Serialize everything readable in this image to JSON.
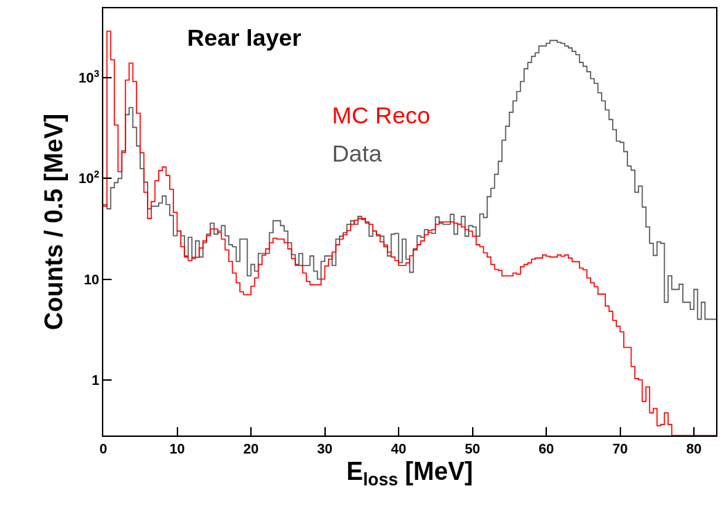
{
  "chart_data": {
    "type": "histogram",
    "title": "Rear layer",
    "xlabel": "E$_{loss}$ [MeV]",
    "ylabel": "Counts / 0.5 [MeV]",
    "bins": [
      0,
      0.5,
      1,
      1.5,
      2,
      2.5,
      3,
      3.5,
      4,
      4.5,
      5,
      5.5,
      6,
      6.5,
      7,
      7.5,
      8,
      8.5,
      9,
      9.5,
      10,
      10.5,
      11,
      11.5,
      12,
      12.5,
      13,
      13.5,
      14,
      14.5,
      15,
      15.5,
      16,
      16.5,
      17,
      17.5,
      18,
      18.5,
      19,
      19.5,
      20,
      20.5,
      21,
      21.5,
      22,
      22.5,
      23,
      23.5,
      24,
      24.5,
      25,
      25.5,
      26,
      26.5,
      27,
      27.5,
      28,
      28.5,
      29,
      29.5,
      30,
      30.5,
      31,
      31.5,
      32,
      32.5,
      33,
      33.5,
      34,
      34.5,
      35,
      35.5,
      36,
      36.5,
      37,
      37.5,
      38,
      38.5,
      39,
      39.5,
      40,
      40.5,
      41,
      41.5,
      42,
      42.5,
      43,
      43.5,
      44,
      44.5,
      45,
      45.5,
      46,
      46.5,
      47,
      47.5,
      48,
      48.5,
      49,
      49.5,
      50,
      50.5,
      51,
      51.5,
      52,
      52.5,
      53,
      53.5,
      54,
      54.5,
      55,
      55.5,
      56,
      56.5,
      57,
      57.5,
      58,
      58.5,
      59,
      59.5,
      60,
      60.5,
      61,
      61.5,
      62,
      62.5,
      63,
      63.5,
      64,
      64.5,
      65,
      65.5,
      66,
      66.5,
      67,
      67.5,
      68,
      68.5,
      69,
      69.5,
      70,
      70.5,
      71,
      71.5,
      72,
      72.5,
      73,
      73.5,
      74,
      74.5,
      75,
      75.5,
      76,
      76.5,
      77,
      77.5,
      78,
      78.5,
      79,
      79.5,
      80,
      80.5,
      81,
      81.5,
      82,
      82.5,
      83
    ],
    "series": [
      {
        "name": "Data",
        "color": "#555555",
        "values": [
          55,
          50,
          81,
          91,
          100,
          188,
          430,
          505,
          322,
          210,
          125,
          92,
          50,
          53,
          53,
          57,
          67,
          55,
          43,
          27,
          30,
          27,
          17,
          26,
          16,
          24,
          16.6,
          23,
          28,
          36,
          28,
          30,
          34,
          27,
          22,
          21,
          15,
          25,
          25,
          10.8,
          14,
          12,
          18,
          18,
          18,
          29,
          38,
          38,
          34,
          30,
          23,
          17.5,
          14,
          18,
          13.7,
          13.7,
          17,
          12,
          10,
          15,
          17,
          17,
          13.7,
          25,
          26.7,
          29,
          35,
          38,
          35,
          42,
          39,
          36,
          26.7,
          30,
          27,
          26.7,
          21.8,
          17,
          28,
          28.5,
          14.6,
          25,
          15.8,
          11.7,
          20,
          27,
          26,
          31,
          29,
          28.5,
          41.5,
          36,
          35,
          35,
          44,
          28,
          35,
          42,
          26.7,
          34,
          33,
          26.7,
          44.5,
          41,
          66,
          80,
          110,
          148,
          240,
          330,
          455,
          590,
          730,
          920,
          1230,
          1420,
          1630,
          1770,
          2070,
          2070,
          2200,
          2350,
          2350,
          2250,
          2200,
          2070,
          1980,
          1830,
          1700,
          1420,
          1300,
          1150,
          980,
          880,
          710,
          590,
          480,
          385,
          305,
          235,
          228,
          185,
          133,
          121,
          73,
          84,
          52,
          33,
          22.7,
          17.2,
          23.5,
          22.7,
          5.9,
          10.8,
          7.9,
          7.9,
          8.9,
          5.9,
          5.9,
          5.0,
          7.9,
          4.0,
          5.9,
          4.0,
          4.0,
          4.0
        ]
      },
      {
        "name": "MC Reco",
        "color": "#ff0000",
        "values": [
          53,
          2900,
          1510,
          340,
          117,
          180,
          950,
          1400,
          920,
          445,
          180,
          73,
          40,
          59,
          95,
          120,
          130,
          107,
          78,
          46,
          30,
          21,
          16.6,
          15.3,
          16.5,
          16.5,
          20.4,
          24,
          27,
          31.5,
          31.5,
          29,
          25,
          19.5,
          15,
          11.5,
          9.2,
          7.5,
          7,
          7,
          8.5,
          10.3,
          14,
          17.3,
          20,
          23,
          25.5,
          25,
          25,
          23,
          20,
          16,
          13.7,
          13.7,
          11.5,
          9.5,
          8.8,
          8.8,
          8.8,
          10,
          13.5,
          15.8,
          18.6,
          22,
          25,
          27.6,
          30.4,
          35,
          38.5,
          40,
          40,
          37,
          35,
          30,
          27.6,
          23.5,
          21,
          18.6,
          16.6,
          15.3,
          13.7,
          13.7,
          14.5,
          17.1,
          19.5,
          22,
          24,
          27.6,
          30.4,
          31,
          35,
          37,
          37,
          37,
          37,
          36,
          35,
          33,
          31,
          30,
          26.7,
          22,
          21,
          18.3,
          16.6,
          14,
          12.5,
          12.2,
          10.8,
          10.8,
          10.8,
          11.5,
          11.2,
          13.3,
          14,
          14.5,
          15.8,
          16.2,
          16.2,
          17.4,
          16.9,
          16.6,
          16.6,
          17.4,
          16.9,
          17.4,
          16.2,
          14.9,
          14.9,
          12.9,
          12.4,
          10.3,
          9.2,
          8.4,
          7.1,
          7.1,
          5.4,
          4.8,
          3.9,
          3.4,
          3.0,
          2.1,
          2.1,
          1.35,
          1.03,
          1.0,
          0.61,
          0.85,
          0.47,
          0.52,
          0.35,
          0.36,
          0.47,
          0.36,
          null,
          null,
          null,
          null,
          null,
          null,
          null,
          null,
          null,
          null,
          null,
          null
        ]
      }
    ],
    "xlim": [
      0,
      83
    ],
    "xticks": [
      0,
      10,
      20,
      30,
      40,
      50,
      60,
      70,
      80
    ],
    "ylim": [
      0.28,
      4900
    ],
    "yticks": [
      1,
      10,
      {
        "value": 100,
        "label": "10$^{2}$"
      },
      {
        "value": 1000,
        "label": "10$^{3}$"
      }
    ],
    "log": "y",
    "grid": false,
    "legend": false
  }
}
